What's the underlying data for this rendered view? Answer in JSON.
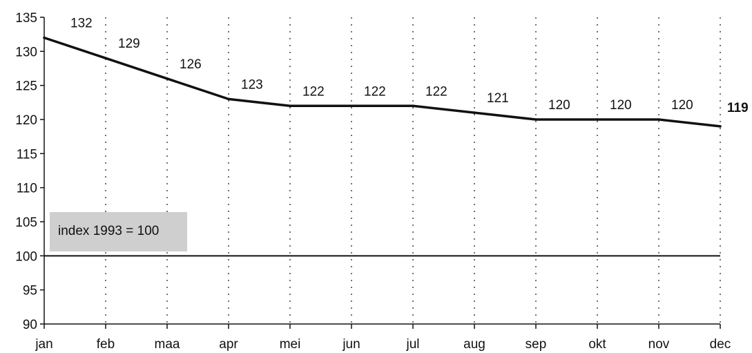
{
  "chart_data": {
    "type": "line",
    "categories": [
      "jan",
      "feb",
      "maa",
      "apr",
      "mei",
      "jun",
      "jul",
      "aug",
      "sep",
      "okt",
      "nov",
      "dec"
    ],
    "series": [
      {
        "values": [
          132,
          129,
          126,
          123,
          122,
          122,
          122,
          121,
          120,
          120,
          120,
          119
        ],
        "labels": [
          "132",
          "129",
          "126",
          "123",
          "122",
          "122",
          "122",
          "121",
          "120",
          "120",
          "120",
          "119"
        ]
      }
    ],
    "reference_line": {
      "value": 100
    },
    "annotation": "index 1993 = 100",
    "ylim": [
      90,
      135
    ],
    "yticks": [
      "90",
      "95",
      "100",
      "105",
      "110",
      "115",
      "120",
      "125",
      "130",
      "135"
    ],
    "grid": "vertical dotted",
    "title": "",
    "xlabel": "",
    "ylabel": ""
  }
}
